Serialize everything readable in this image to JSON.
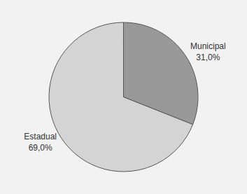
{
  "chart_data": {
    "type": "pie",
    "categories": [
      "Municipal",
      "Estadual"
    ],
    "values": [
      31.0,
      69.0
    ],
    "value_labels": [
      "31,0%",
      "69,0%"
    ],
    "colors": [
      "#999999",
      "#d4d4d4"
    ],
    "data_labels": true
  }
}
